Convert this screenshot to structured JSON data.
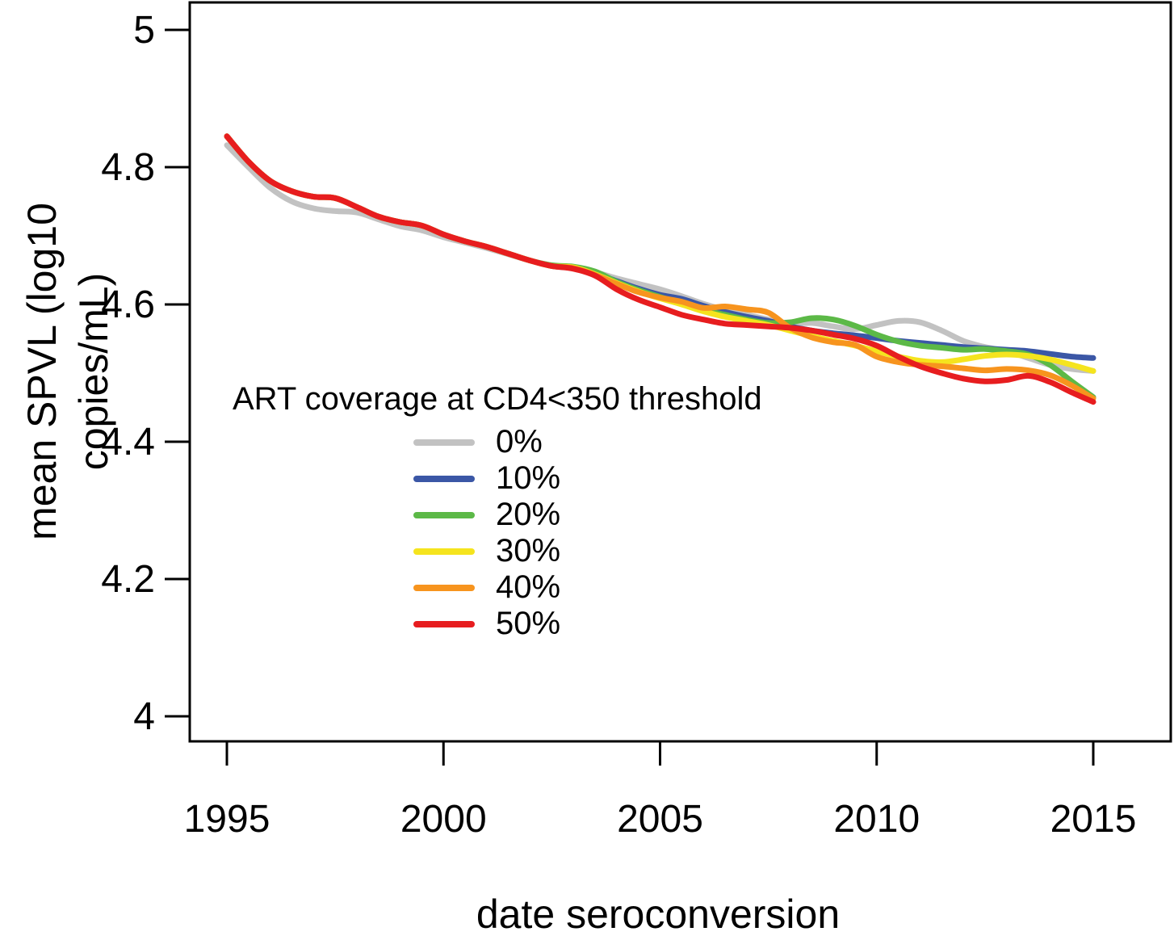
{
  "chart_data": {
    "type": "line",
    "title": "",
    "xlabel": "date seroconversion",
    "ylabel": "mean SPVL (log10 copies/mL)",
    "xlim": [
      1995,
      2015
    ],
    "ylim": [
      4.0,
      5.0
    ],
    "grid": false,
    "x_ticks": [
      1995,
      2000,
      2005,
      2010,
      2015
    ],
    "x_tick_labels": [
      "1995",
      "2000",
      "2005",
      "2010",
      "2015"
    ],
    "y_ticks": [
      4,
      4.2,
      4.4,
      4.6,
      4.8,
      5
    ],
    "y_tick_labels": [
      "4",
      "4.2",
      "4.4",
      "4.6",
      "4.8",
      "5"
    ],
    "legend": {
      "title": "ART coverage at CD4<350 threshold",
      "position": "inside-center-left"
    },
    "x": [
      1995,
      1995.5,
      1996,
      1996.5,
      1997,
      1997.5,
      1998,
      1998.5,
      1999,
      1999.5,
      2000,
      2000.5,
      2001,
      2001.5,
      2002,
      2002.5,
      2003,
      2003.5,
      2004,
      2004.5,
      2005,
      2005.5,
      2006,
      2006.5,
      2007,
      2007.5,
      2008,
      2008.5,
      2009,
      2009.5,
      2010,
      2010.5,
      2011,
      2011.5,
      2012,
      2012.5,
      2013,
      2013.5,
      2014,
      2014.5,
      2015
    ],
    "series": [
      {
        "label": "0%",
        "color": "#C2C2C2",
        "values": [
          4.832,
          4.8,
          4.77,
          4.75,
          4.74,
          4.736,
          4.734,
          4.724,
          4.714,
          4.708,
          4.698,
          4.69,
          4.682,
          4.673,
          4.664,
          4.657,
          4.654,
          4.647,
          4.638,
          4.63,
          4.622,
          4.612,
          4.601,
          4.592,
          4.585,
          4.578,
          4.572,
          4.573,
          4.568,
          4.564,
          4.57,
          4.576,
          4.574,
          4.562,
          4.547,
          4.538,
          4.532,
          4.522,
          4.512,
          4.506,
          4.503
        ]
      },
      {
        "label": "10%",
        "color": "#3B57A6",
        "values": [
          4.845,
          4.808,
          4.78,
          4.765,
          4.757,
          4.755,
          4.742,
          4.728,
          4.72,
          4.715,
          4.702,
          4.692,
          4.684,
          4.674,
          4.664,
          4.656,
          4.653,
          4.645,
          4.634,
          4.623,
          4.614,
          4.608,
          4.598,
          4.589,
          4.582,
          4.576,
          4.568,
          4.562,
          4.558,
          4.555,
          4.551,
          4.547,
          4.544,
          4.541,
          4.538,
          4.536,
          4.534,
          4.532,
          4.528,
          4.524,
          4.522
        ]
      },
      {
        "label": "20%",
        "color": "#5CB947",
        "values": [
          4.845,
          4.808,
          4.78,
          4.765,
          4.757,
          4.755,
          4.742,
          4.728,
          4.72,
          4.715,
          4.702,
          4.692,
          4.684,
          4.674,
          4.664,
          4.657,
          4.655,
          4.648,
          4.633,
          4.621,
          4.611,
          4.601,
          4.592,
          4.585,
          4.578,
          4.573,
          4.574,
          4.58,
          4.578,
          4.569,
          4.556,
          4.546,
          4.54,
          4.537,
          4.534,
          4.535,
          4.532,
          4.527,
          4.512,
          4.488,
          4.465
        ]
      },
      {
        "label": "30%",
        "color": "#F5E41E",
        "values": [
          4.845,
          4.808,
          4.78,
          4.765,
          4.757,
          4.755,
          4.742,
          4.728,
          4.72,
          4.715,
          4.702,
          4.692,
          4.684,
          4.674,
          4.664,
          4.656,
          4.654,
          4.644,
          4.631,
          4.619,
          4.609,
          4.6,
          4.59,
          4.582,
          4.576,
          4.57,
          4.562,
          4.554,
          4.547,
          4.54,
          4.532,
          4.524,
          4.518,
          4.516,
          4.52,
          4.525,
          4.527,
          4.525,
          4.52,
          4.512,
          4.503
        ]
      },
      {
        "label": "40%",
        "color": "#F7941E",
        "values": [
          4.845,
          4.808,
          4.78,
          4.765,
          4.757,
          4.755,
          4.742,
          4.728,
          4.72,
          4.715,
          4.702,
          4.692,
          4.684,
          4.674,
          4.664,
          4.656,
          4.653,
          4.643,
          4.63,
          4.618,
          4.61,
          4.604,
          4.595,
          4.597,
          4.593,
          4.588,
          4.566,
          4.552,
          4.545,
          4.541,
          4.524,
          4.516,
          4.512,
          4.51,
          4.507,
          4.504,
          4.506,
          4.504,
          4.497,
          4.482,
          4.463
        ]
      },
      {
        "label": "50%",
        "color": "#E71D1F",
        "values": [
          4.845,
          4.808,
          4.78,
          4.765,
          4.757,
          4.755,
          4.742,
          4.728,
          4.72,
          4.715,
          4.702,
          4.692,
          4.684,
          4.674,
          4.664,
          4.656,
          4.652,
          4.642,
          4.622,
          4.607,
          4.596,
          4.585,
          4.578,
          4.572,
          4.57,
          4.568,
          4.566,
          4.562,
          4.556,
          4.55,
          4.54,
          4.524,
          4.51,
          4.5,
          4.492,
          4.488,
          4.49,
          4.496,
          4.487,
          4.472,
          4.458
        ]
      }
    ]
  }
}
